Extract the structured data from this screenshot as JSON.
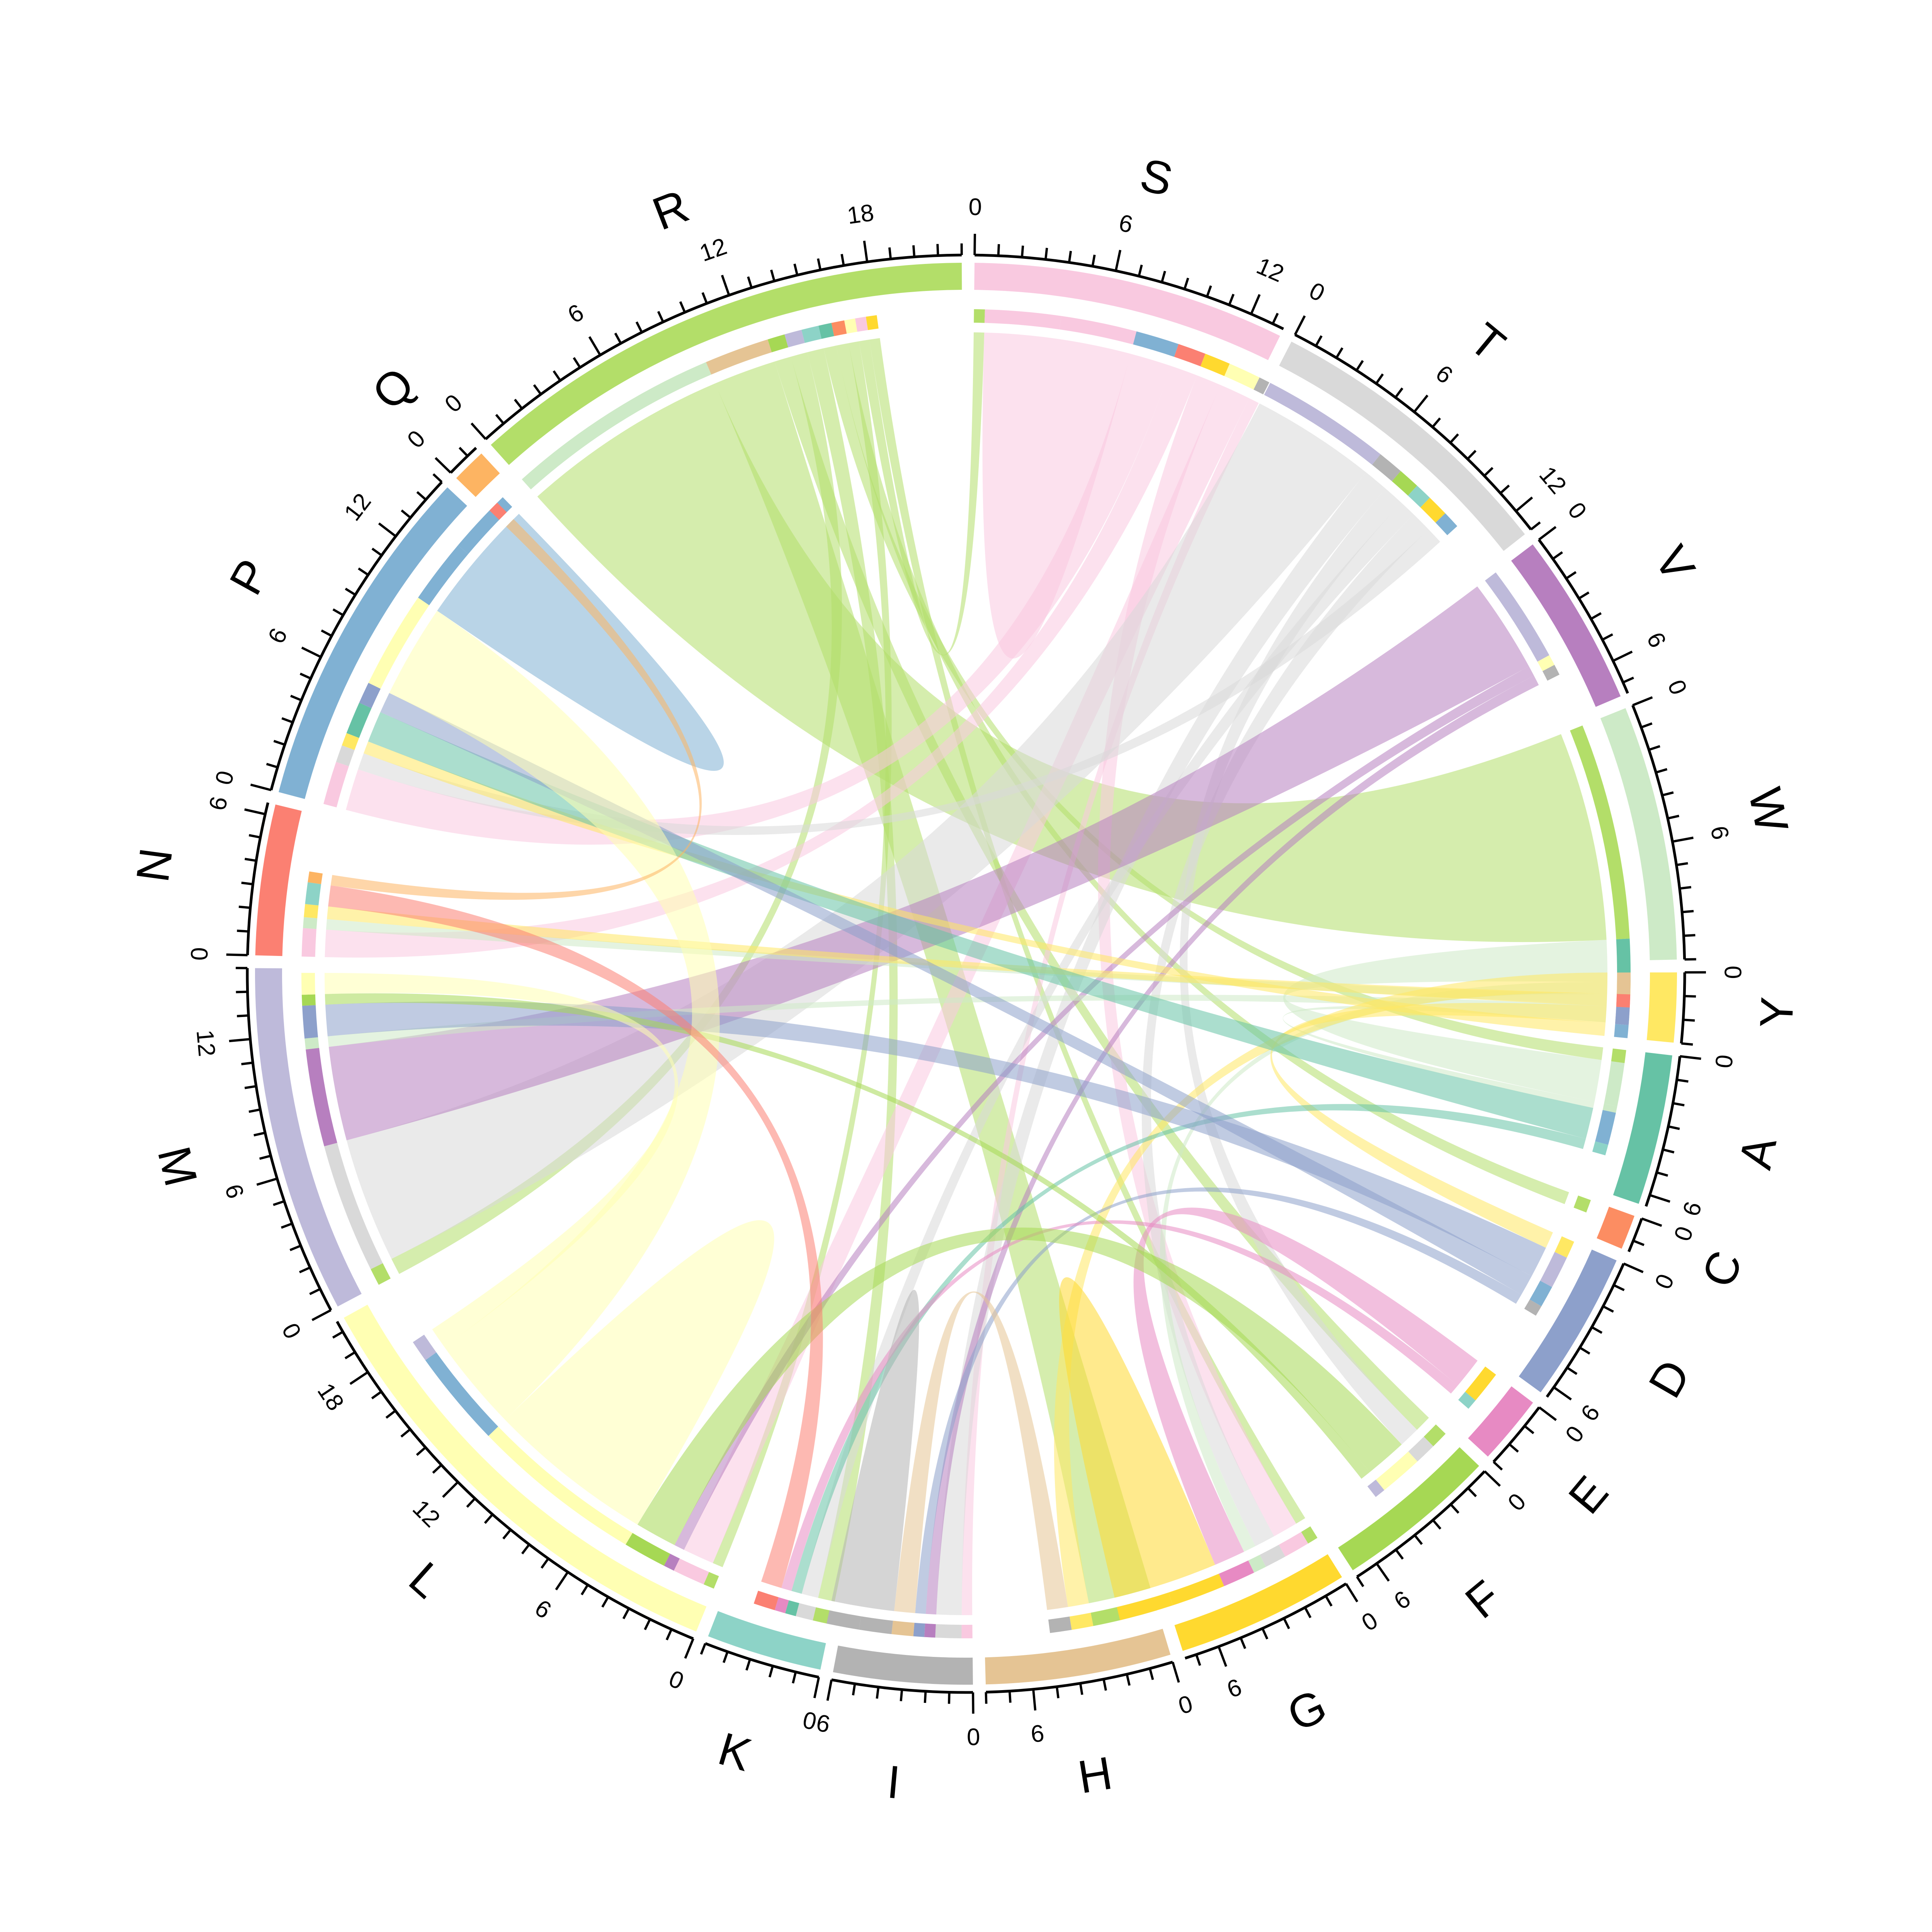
{
  "chart_data": {
    "type": "chord",
    "title": "",
    "sectors": [
      {
        "name": "S",
        "total": 13.5,
        "color": "#F9C9E0",
        "ticks": [
          0,
          6,
          12
        ]
      },
      {
        "name": "T",
        "total": 13.0,
        "color": "#D9D9D9",
        "ticks": [
          0,
          6,
          12
        ]
      },
      {
        "name": "V",
        "total": 7.5,
        "color": "#B77FBF",
        "ticks": [
          0,
          6
        ]
      },
      {
        "name": "W",
        "total": 11.0,
        "color": "#CDEAC7",
        "ticks": [
          0,
          6
        ]
      },
      {
        "name": "Y",
        "total": 3.0,
        "color": "#FFE863",
        "ticks": [
          0
        ]
      },
      {
        "name": "A",
        "total": 6.5,
        "color": "#66C2A5",
        "ticks": [
          0,
          6
        ]
      },
      {
        "name": "C",
        "total": 1.5,
        "color": "#FC8D62",
        "ticks": [
          0
        ]
      },
      {
        "name": "D",
        "total": 6.5,
        "color": "#8DA0CB",
        "ticks": [
          0,
          6
        ]
      },
      {
        "name": "E",
        "total": 3.0,
        "color": "#E78AC3",
        "ticks": [
          0
        ]
      },
      {
        "name": "F",
        "total": 7.0,
        "color": "#A6D854",
        "ticks": [
          0,
          6
        ]
      },
      {
        "name": "G",
        "total": 7.5,
        "color": "#FFD92F",
        "ticks": [
          0,
          6
        ]
      },
      {
        "name": "H",
        "total": 8.0,
        "color": "#E5C494",
        "ticks": [
          0,
          6
        ]
      },
      {
        "name": "I",
        "total": 6.0,
        "color": "#B3B3B3",
        "ticks": [
          6,
          0
        ]
      },
      {
        "name": "K",
        "total": 5.0,
        "color": "#8DD3C7",
        "ticks": [
          0
        ]
      },
      {
        "name": "L",
        "total": 20.5,
        "color": "#FFFFB3",
        "ticks": [
          0,
          6,
          12,
          18
        ]
      },
      {
        "name": "M",
        "total": 15.0,
        "color": "#BEBADA",
        "ticks": [
          0,
          6,
          12
        ]
      },
      {
        "name": "N",
        "total": 6.5,
        "color": "#FB8072",
        "ticks": [
          0,
          6
        ]
      },
      {
        "name": "P",
        "total": 15.0,
        "color": "#80B1D3",
        "ticks": [
          0,
          6,
          12
        ]
      },
      {
        "name": "Q",
        "total": 1.5,
        "color": "#FDB462",
        "ticks": [
          0
        ]
      },
      {
        "name": "R",
        "total": 22.0,
        "color": "#B3DE69",
        "ticks": [
          0,
          6,
          12,
          18
        ]
      }
    ],
    "links": [
      {
        "from": "R",
        "to": "W",
        "value": 10.0
      },
      {
        "from": "R",
        "to": "H",
        "value": 3.0
      },
      {
        "from": "R",
        "to": "F",
        "value": 0.8
      },
      {
        "from": "R",
        "to": "M",
        "value": 0.8
      },
      {
        "from": "R",
        "to": "K",
        "value": 0.8
      },
      {
        "from": "R",
        "to": "A",
        "value": 0.6
      },
      {
        "from": "R",
        "to": "C",
        "value": 0.6
      },
      {
        "from": "R",
        "to": "L",
        "value": 0.5
      },
      {
        "from": "R",
        "to": "S",
        "value": 0.5
      },
      {
        "from": "R",
        "to": "G",
        "value": 0.5
      },
      {
        "from": "S",
        "to": "S",
        "value": 3.5
      },
      {
        "from": "S",
        "to": "P",
        "value": 2.0
      },
      {
        "from": "S",
        "to": "N",
        "value": 1.3
      },
      {
        "from": "S",
        "to": "G",
        "value": 1.2
      },
      {
        "from": "S",
        "to": "L",
        "value": 1.5
      },
      {
        "from": "S",
        "to": "I",
        "value": 0.5
      },
      {
        "from": "T",
        "to": "M",
        "value": 6.0
      },
      {
        "from": "T",
        "to": "I",
        "value": 1.2
      },
      {
        "from": "T",
        "to": "F",
        "value": 1.0
      },
      {
        "from": "T",
        "to": "K",
        "value": 0.8
      },
      {
        "from": "T",
        "to": "G",
        "value": 1.0
      },
      {
        "from": "T",
        "to": "P",
        "value": 0.8
      },
      {
        "from": "V",
        "to": "M",
        "value": 4.5
      },
      {
        "from": "V",
        "to": "L",
        "value": 0.5
      },
      {
        "from": "V",
        "to": "I",
        "value": 0.5
      },
      {
        "from": "W",
        "to": "A",
        "value": 2.0
      },
      {
        "from": "W",
        "to": "G",
        "value": 0.6
      },
      {
        "from": "W",
        "to": "N",
        "value": 0.5
      },
      {
        "from": "W",
        "to": "M",
        "value": 0.5
      },
      {
        "from": "W",
        "to": "A",
        "value": 0.3
      },
      {
        "from": "Y",
        "to": "H",
        "value": 1.0
      },
      {
        "from": "Y",
        "to": "N",
        "value": 0.6
      },
      {
        "from": "Y",
        "to": "D",
        "value": 0.8
      },
      {
        "from": "Y",
        "to": "P",
        "value": 0.6
      },
      {
        "from": "A",
        "to": "P",
        "value": 1.5
      },
      {
        "from": "A",
        "to": "K",
        "value": 0.5
      },
      {
        "from": "D",
        "to": "M",
        "value": 1.5
      },
      {
        "from": "D",
        "to": "P",
        "value": 1.0
      },
      {
        "from": "D",
        "to": "I",
        "value": 0.5
      },
      {
        "from": "E",
        "to": "G",
        "value": 1.5
      },
      {
        "from": "E",
        "to": "K",
        "value": 0.5
      },
      {
        "from": "F",
        "to": "L",
        "value": 2.0
      },
      {
        "from": "F",
        "to": "M",
        "value": 0.5
      },
      {
        "from": "G",
        "to": "G",
        "value": 2.5
      },
      {
        "from": "H",
        "to": "I",
        "value": 1.0
      },
      {
        "from": "I",
        "to": "I",
        "value": 1.5
      },
      {
        "from": "L",
        "to": "L",
        "value": 4.0
      },
      {
        "from": "L",
        "to": "P",
        "value": 4.5
      },
      {
        "from": "L",
        "to": "M",
        "value": 1.0
      },
      {
        "from": "N",
        "to": "K",
        "value": 1.0
      },
      {
        "from": "P",
        "to": "P",
        "value": 3.0
      },
      {
        "from": "Q",
        "to": "N",
        "value": 0.5
      }
    ]
  }
}
